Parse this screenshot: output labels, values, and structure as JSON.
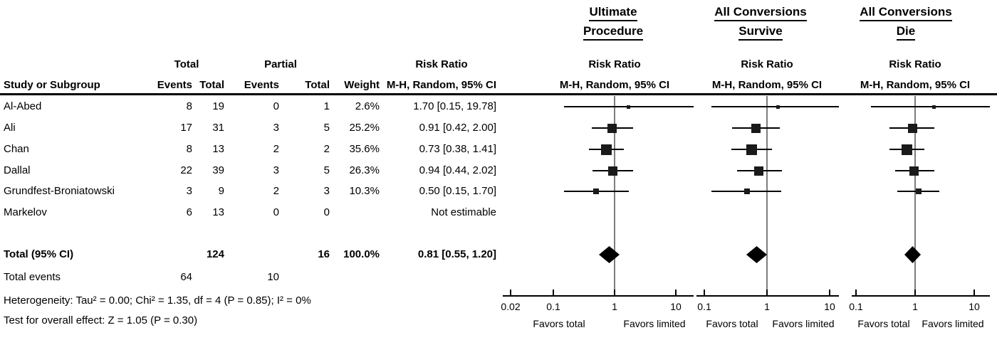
{
  "header": {
    "study_col": "Study or Subgroup",
    "group_total": "Total",
    "group_partial": "Partial",
    "events": "Events",
    "total": "Total",
    "weight": "Weight",
    "risk_ratio": "Risk Ratio",
    "mh_ci": "M-H, Random, 95% CI",
    "plot_titles": [
      {
        "line1": "Ultimate",
        "line2": "Procedure"
      },
      {
        "line1": "All Conversions",
        "line2": "Survive"
      },
      {
        "line1": "All Conversions",
        "line2": "Die"
      }
    ]
  },
  "table": {
    "rows": [
      {
        "study": "Al-Abed",
        "te": "8",
        "tt": "19",
        "pe": "0",
        "pt": "1",
        "weight": "2.6%",
        "rr": "1.70 [0.15, 19.78]"
      },
      {
        "study": "Ali",
        "te": "17",
        "tt": "31",
        "pe": "3",
        "pt": "5",
        "weight": "25.2%",
        "rr": "0.91 [0.42, 2.00]"
      },
      {
        "study": "Chan",
        "te": "8",
        "tt": "13",
        "pe": "2",
        "pt": "2",
        "weight": "35.6%",
        "rr": "0.73 [0.38, 1.41]"
      },
      {
        "study": "Dallal",
        "te": "22",
        "tt": "39",
        "pe": "3",
        "pt": "5",
        "weight": "26.3%",
        "rr": "0.94 [0.44, 2.02]"
      },
      {
        "study": "Grundfest-Broniatowski",
        "te": "3",
        "tt": "9",
        "pe": "2",
        "pt": "3",
        "weight": "10.3%",
        "rr": "0.50 [0.15, 1.70]"
      },
      {
        "study": "Markelov",
        "te": "6",
        "tt": "13",
        "pe": "0",
        "pt": "0",
        "weight": "",
        "rr": "Not estimable"
      }
    ],
    "total_row": {
      "label": "Total (95% CI)",
      "tt": "124",
      "pt": "16",
      "weight": "100.0%",
      "rr": "0.81 [0.55, 1.20]"
    },
    "total_events": {
      "label": "Total events",
      "te": "64",
      "pe": "10"
    },
    "heterogeneity": "Heterogeneity: Tau² = 0.00; Chi² = 1.35, df = 4 (P = 0.85); I² = 0%",
    "overall_effect": "Test for overall effect: Z = 1.05 (P = 0.30)"
  },
  "chart_data": [
    {
      "type": "scatter",
      "subtype": "forest",
      "title": "Ultimate Procedure",
      "effect_measure": "Risk Ratio",
      "method": "M-H, Random, 95% CI",
      "x_scale": "log",
      "x_ticks": [
        0.02,
        0.1,
        1,
        10
      ],
      "axis_labels": {
        "left": "Favors total",
        "right": "Favors limited"
      },
      "studies": [
        {
          "name": "Al-Abed",
          "rr": 1.7,
          "ci_low": 0.15,
          "ci_high": 19.78,
          "weight": 2.6
        },
        {
          "name": "Ali",
          "rr": 0.91,
          "ci_low": 0.42,
          "ci_high": 2.0,
          "weight": 25.2
        },
        {
          "name": "Chan",
          "rr": 0.73,
          "ci_low": 0.38,
          "ci_high": 1.41,
          "weight": 35.6
        },
        {
          "name": "Dallal",
          "rr": 0.94,
          "ci_low": 0.44,
          "ci_high": 2.02,
          "weight": 26.3
        },
        {
          "name": "Grundfest-Broniatowski",
          "rr": 0.5,
          "ci_low": 0.15,
          "ci_high": 1.7,
          "weight": 10.3
        },
        {
          "name": "Markelov",
          "rr": null,
          "ci_low": null,
          "ci_high": null,
          "weight": null
        }
      ],
      "total": {
        "rr": 0.81,
        "ci_low": 0.55,
        "ci_high": 1.2
      }
    },
    {
      "type": "scatter",
      "subtype": "forest",
      "title": "All Conversions Survive",
      "effect_measure": "Risk Ratio",
      "method": "M-H, Random, 95% CI",
      "x_scale": "log",
      "x_ticks": [
        0.1,
        1,
        10
      ],
      "axis_labels": {
        "left": "Favors total",
        "right": "Favors limited"
      },
      "values_estimated_from_plot": true,
      "studies": [
        {
          "name": "Al-Abed",
          "rr": 1.5,
          "ci_low": 0.13,
          "ci_high": 20,
          "weight": 2.6
        },
        {
          "name": "Ali",
          "rr": 0.67,
          "ci_low": 0.28,
          "ci_high": 1.6,
          "weight": 25.2
        },
        {
          "name": "Chan",
          "rr": 0.57,
          "ci_low": 0.27,
          "ci_high": 1.2,
          "weight": 35.6
        },
        {
          "name": "Dallal",
          "rr": 0.74,
          "ci_low": 0.33,
          "ci_high": 1.7,
          "weight": 26.3
        },
        {
          "name": "Grundfest-Broniatowski",
          "rr": 0.48,
          "ci_low": 0.13,
          "ci_high": 1.7,
          "weight": 10.3
        },
        {
          "name": "Markelov",
          "rr": null,
          "ci_low": null,
          "ci_high": null,
          "weight": null
        }
      ],
      "total": {
        "rr": 0.69,
        "ci_low": 0.47,
        "ci_high": 1.0
      }
    },
    {
      "type": "scatter",
      "subtype": "forest",
      "title": "All Conversions Die",
      "effect_measure": "Risk Ratio",
      "method": "M-H, Random, 95% CI",
      "x_scale": "log",
      "x_ticks": [
        0.1,
        1,
        10
      ],
      "axis_labels": {
        "left": "Favors total",
        "right": "Favors limited"
      },
      "values_estimated_from_plot": true,
      "studies": [
        {
          "name": "Al-Abed",
          "rr": 2.1,
          "ci_low": 0.18,
          "ci_high": 20,
          "weight": 2.6
        },
        {
          "name": "Ali",
          "rr": 0.9,
          "ci_low": 0.37,
          "ci_high": 2.1,
          "weight": 25.2
        },
        {
          "name": "Chan",
          "rr": 0.72,
          "ci_low": 0.37,
          "ci_high": 1.43,
          "weight": 35.6
        },
        {
          "name": "Dallal",
          "rr": 0.95,
          "ci_low": 0.46,
          "ci_high": 2.1,
          "weight": 26.3
        },
        {
          "name": "Grundfest-Broniatowski",
          "rr": 1.15,
          "ci_low": 0.5,
          "ci_high": 2.6,
          "weight": 10.3
        },
        {
          "name": "Markelov",
          "rr": null,
          "ci_low": null,
          "ci_high": null,
          "weight": null
        }
      ],
      "total": {
        "rr": 0.92,
        "ci_low": 0.66,
        "ci_high": 1.25
      }
    }
  ]
}
